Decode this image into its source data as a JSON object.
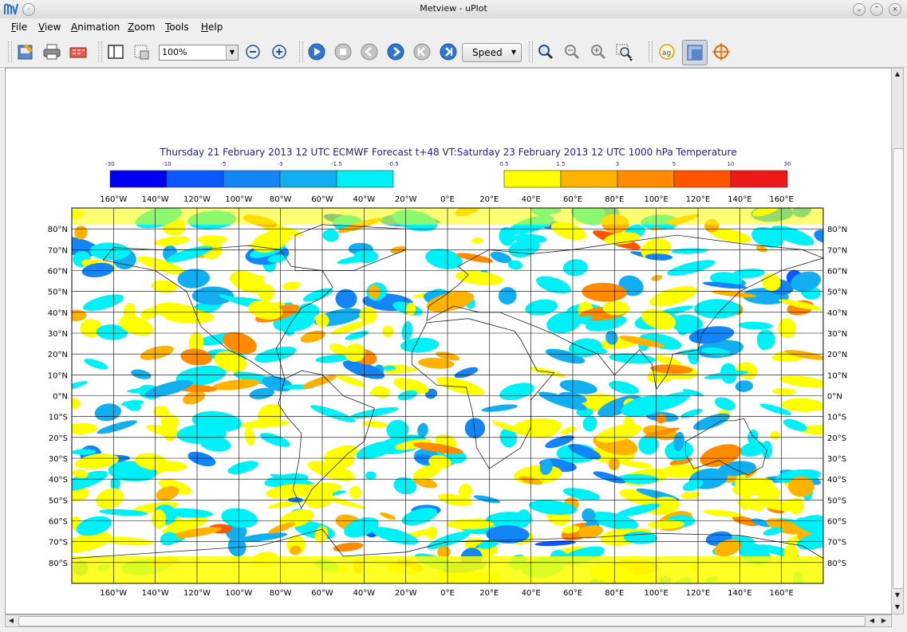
{
  "window": {
    "title": "Metview - uPlot",
    "logo": "MV",
    "controls": [
      "minimize-icon",
      "maximize-icon",
      "close-icon"
    ]
  },
  "menu": [
    "File",
    "View",
    "Animation",
    "Zoom",
    "Tools",
    "Help"
  ],
  "toolbar": {
    "zoom_value": "100%",
    "speed_label": "Speed",
    "buttons": [
      "export-icon",
      "print-icon",
      "save-to-file-icon",
      "sidebar-toggle-icon",
      "area-select-icon",
      "zoom-out-icon",
      "zoom-in-icon",
      "play-icon",
      "stop-icon",
      "previous-icon",
      "next-icon",
      "first-icon",
      "last-icon",
      "magnifier-icon",
      "zoom-minus-icon",
      "zoom-plus-icon",
      "zoom-area-icon",
      "antialias-icon",
      "layers-icon",
      "cursor-data-icon"
    ]
  },
  "plot": {
    "title": "Thursday 21 February 2013 12 UTC ECMWF Forecast t+48 VT:Saturday 23 February 2013 12 UTC 1000 hPa  Temperature",
    "legend_negative": {
      "labels": [
        "-30",
        "-10",
        "-5",
        "-3",
        "-1.5",
        "-0.5"
      ],
      "colors": [
        "#0000ee",
        "#0b58ff",
        "#1385f5",
        "#12aef0",
        "#00f0f8"
      ]
    },
    "legend_positive": {
      "labels": [
        "0.5",
        "1.5",
        "3",
        "5",
        "10",
        "30"
      ],
      "colors": [
        "#ffff00",
        "#ffb300",
        "#ff8c00",
        "#ff5500",
        "#ee1a1a"
      ]
    },
    "lon_labels": [
      "160°W",
      "140°W",
      "120°W",
      "100°W",
      "80°W",
      "60°W",
      "40°W",
      "20°W",
      "0°E",
      "20°E",
      "40°E",
      "60°E",
      "80°E",
      "100°E",
      "120°E",
      "140°E",
      "160°E"
    ],
    "lat_labels": [
      "80°N",
      "70°N",
      "60°N",
      "50°N",
      "40°N",
      "30°N",
      "20°N",
      "10°N",
      "0°N",
      "10°S",
      "20°S",
      "30°S",
      "40°S",
      "50°S",
      "60°S",
      "70°S",
      "80°S"
    ]
  }
}
